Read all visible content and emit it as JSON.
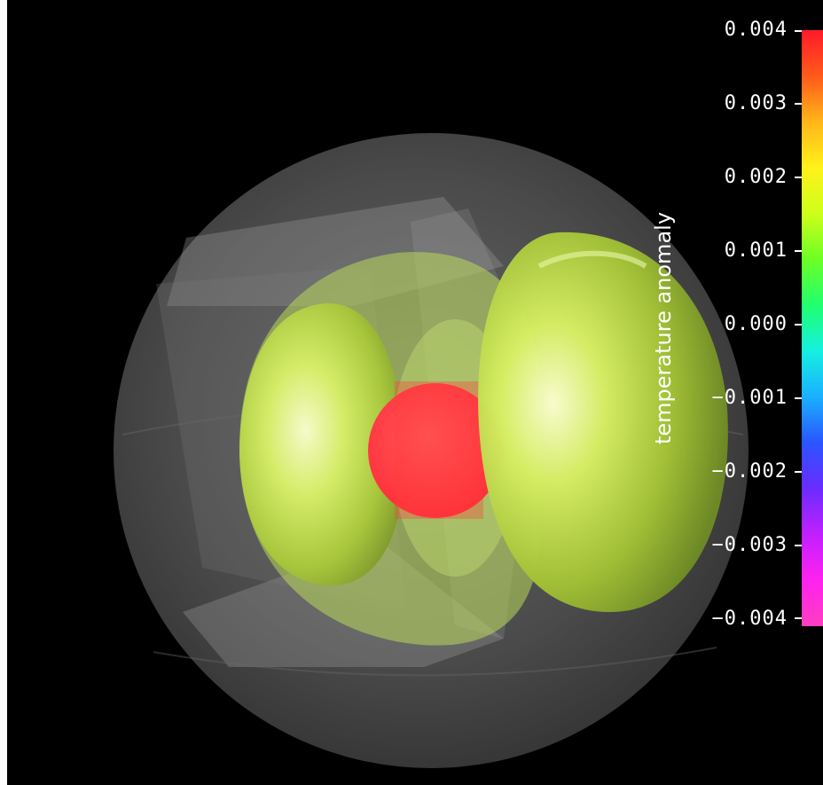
{
  "colorbar": {
    "title": "temperature anomaly",
    "min": -0.004,
    "max": 0.004,
    "ticks": [
      "0.004",
      "0.003",
      "0.002",
      "0.001",
      "0.000",
      "−0.001",
      "−0.002",
      "−0.003",
      "−0.004"
    ],
    "colormap": [
      "#ff3fbf",
      "#ff22f0",
      "#c020ff",
      "#6a2cff",
      "#2a55ff",
      "#1ab0ff",
      "#15f0e0",
      "#20ff70",
      "#6cff25",
      "#cdff1a",
      "#fff21a",
      "#ffb61a",
      "#ff5a1a",
      "#ff1a2a"
    ]
  },
  "scene": {
    "background_color": "#000000",
    "sphere_color": "#8a8a8a",
    "isosurface_positive_color": "#c8ec5a",
    "isosurface_core_color": "#ff3b3b"
  }
}
